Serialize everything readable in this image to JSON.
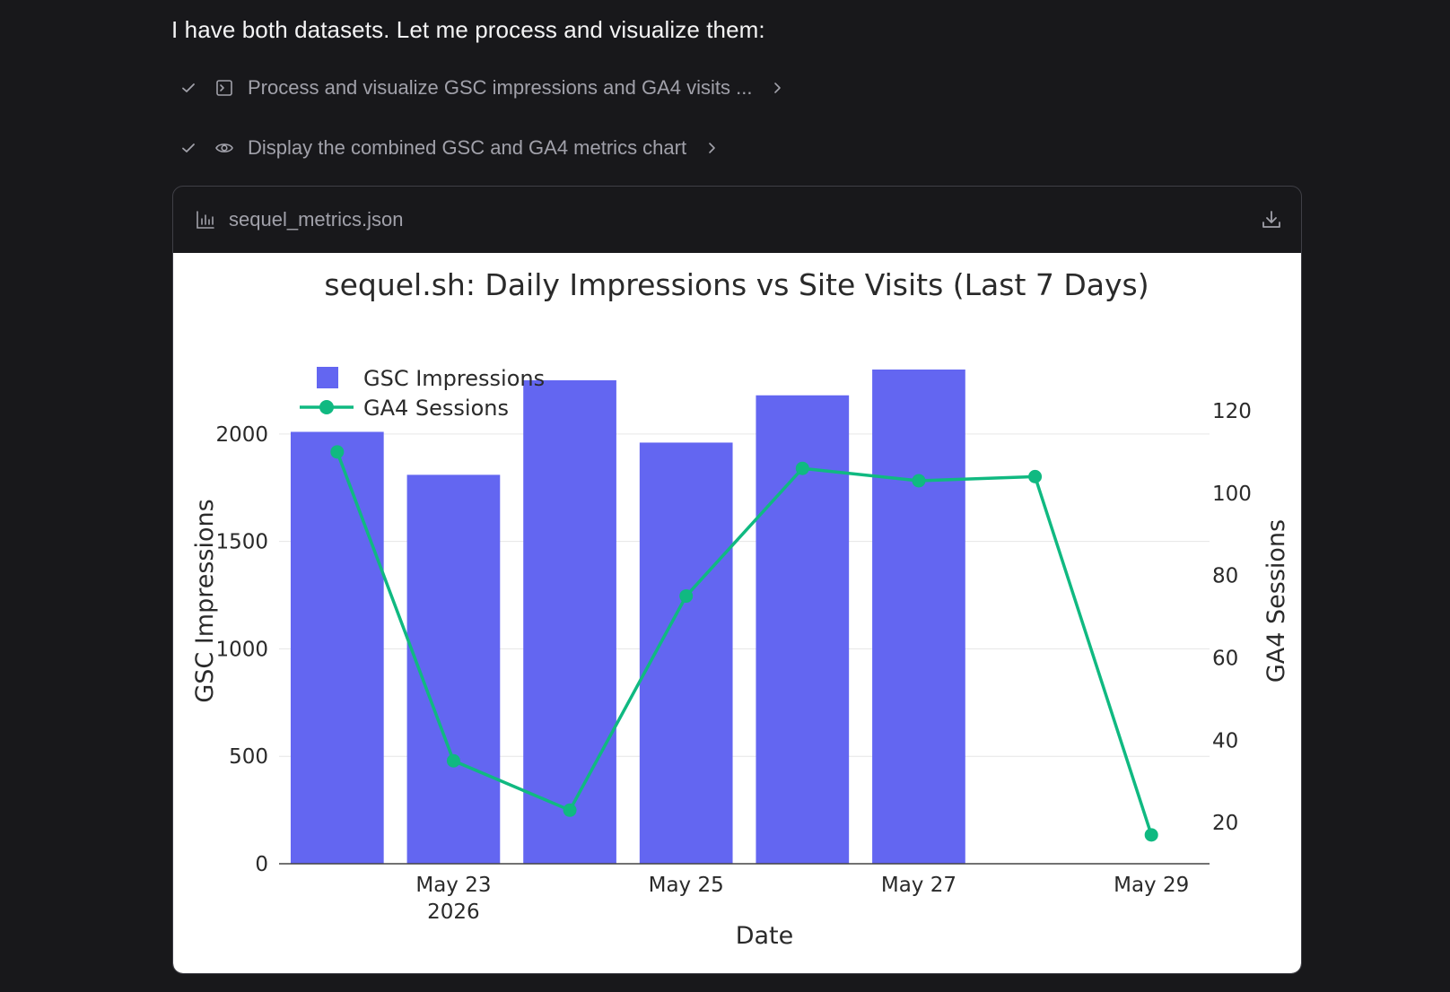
{
  "message": {
    "intro": "I have both datasets. Let me process and visualize them:",
    "steps": [
      {
        "label": "Process and visualize GSC impressions and GA4 visits ...",
        "kind_icon": "terminal-icon"
      },
      {
        "label": "Display the combined GSC and GA4 metrics chart",
        "kind_icon": "eye-icon"
      }
    ]
  },
  "artifact": {
    "filename": "sequel_metrics.json",
    "icon": "bar-chart-icon",
    "download_icon": "download-icon"
  },
  "chart_data": {
    "type": "bar",
    "title": "sequel.sh: Daily Impressions vs Site Visits (Last 7 Days)",
    "xlabel": "Date",
    "ylabel": "GSC Impressions",
    "y2label": "GA4 Sessions",
    "x_ticks": [
      {
        "date": "2026-05-23",
        "label": "May 23",
        "sub": "2026"
      },
      {
        "date": "2026-05-25",
        "label": "May 25",
        "sub": ""
      },
      {
        "date": "2026-05-27",
        "label": "May 27",
        "sub": ""
      },
      {
        "date": "2026-05-29",
        "label": "May 29",
        "sub": ""
      }
    ],
    "xlim": [
      "2026-05-21T12:00",
      "2026-05-29T12:00"
    ],
    "ylim": [
      0,
      2300
    ],
    "y2lim": [
      10,
      130
    ],
    "yticks": [
      0,
      500,
      1000,
      1500,
      2000
    ],
    "y2ticks": [
      20,
      40,
      60,
      80,
      100,
      120
    ],
    "legend_position": "top-left",
    "series": [
      {
        "name": "GSC Impressions",
        "type": "bar",
        "axis": "y",
        "color": "#6366f1",
        "x": [
          "2026-05-22",
          "2026-05-23",
          "2026-05-24",
          "2026-05-25",
          "2026-05-26",
          "2026-05-27"
        ],
        "values": [
          2010,
          1810,
          2250,
          1960,
          2180,
          2300
        ]
      },
      {
        "name": "GA4 Sessions",
        "type": "line",
        "axis": "y2",
        "color": "#10b981",
        "x": [
          "2026-05-22",
          "2026-05-23",
          "2026-05-24",
          "2026-05-25",
          "2026-05-26",
          "2026-05-27",
          "2026-05-28",
          "2026-05-29"
        ],
        "values": [
          110,
          35,
          23,
          75,
          106,
          103,
          104,
          17
        ]
      }
    ]
  }
}
